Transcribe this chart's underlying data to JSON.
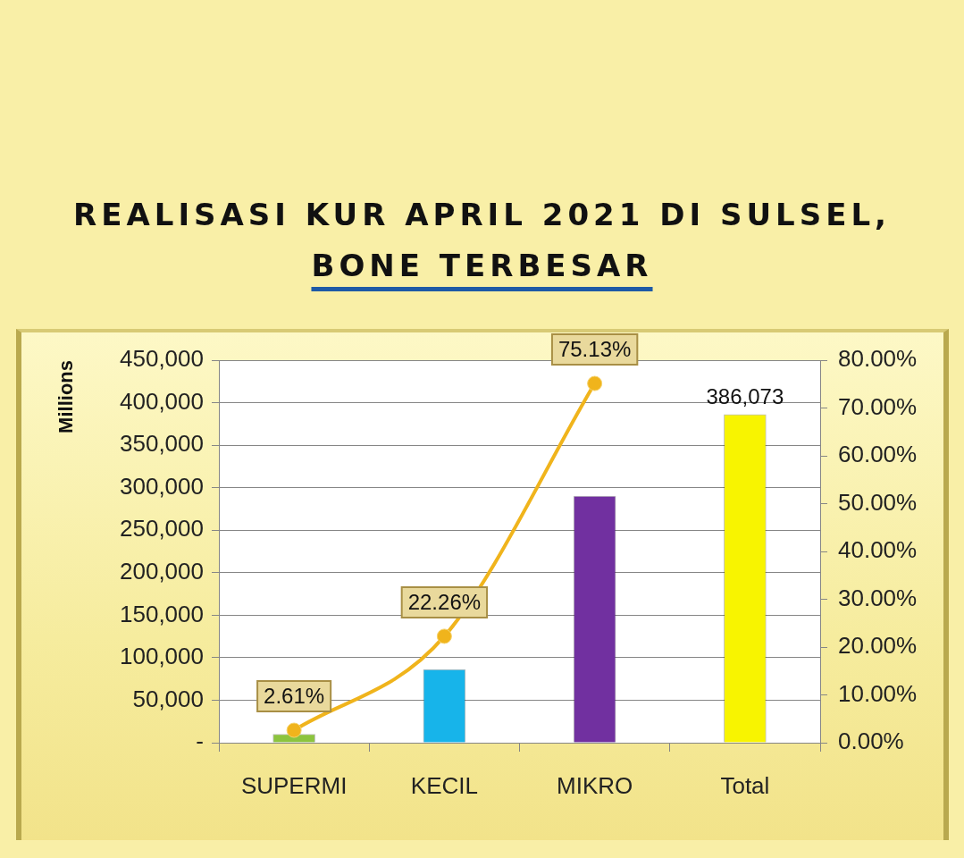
{
  "chart_data": {
    "type": "bar",
    "title": "REALISASI KUR APRIL 2021 DI SULSEL,\nBONE TERBESAR",
    "ylabel": "Millions",
    "categories": [
      "SUPERMI",
      "KECIL",
      "MIKRO",
      "Total"
    ],
    "series": [
      {
        "colors": [
          "#8cc43e",
          "#17b4ea",
          "#7130a0",
          "#f8f400"
        ],
        "values": [
          10000,
          86000,
          290000,
          386073
        ],
        "value_labels": [
          null,
          null,
          null,
          "386,073"
        ]
      },
      {
        "type": "line",
        "axis": "y2",
        "color": "#f0b41c",
        "values": [
          2.61,
          22.26,
          75.13,
          null
        ],
        "value_labels": [
          "2.61%",
          "22.26%",
          "75.13%",
          null
        ]
      }
    ],
    "ylim": [
      0,
      450000
    ],
    "yticks": [
      {
        "value": 0,
        "label": "-"
      },
      {
        "value": 50000,
        "label": "50,000"
      },
      {
        "value": 100000,
        "label": "100,000"
      },
      {
        "value": 150000,
        "label": "150,000"
      },
      {
        "value": 200000,
        "label": "200,000"
      },
      {
        "value": 250000,
        "label": "250,000"
      },
      {
        "value": 300000,
        "label": "300,000"
      },
      {
        "value": 350000,
        "label": "350,000"
      },
      {
        "value": 400000,
        "label": "400,000"
      },
      {
        "value": 450000,
        "label": "450,000"
      }
    ],
    "y2lim": [
      0,
      80
    ],
    "y2ticks": [
      {
        "value": 0,
        "label": "0.00%"
      },
      {
        "value": 10,
        "label": "10.00%"
      },
      {
        "value": 20,
        "label": "20.00%"
      },
      {
        "value": 30,
        "label": "30.00%"
      },
      {
        "value": 40,
        "label": "40.00%"
      },
      {
        "value": 50,
        "label": "50.00%"
      },
      {
        "value": 60,
        "label": "60.00%"
      },
      {
        "value": 70,
        "label": "70.00%"
      },
      {
        "value": 80,
        "label": "80.00%"
      }
    ],
    "grid": "y",
    "legend": false,
    "marker": "circle"
  }
}
